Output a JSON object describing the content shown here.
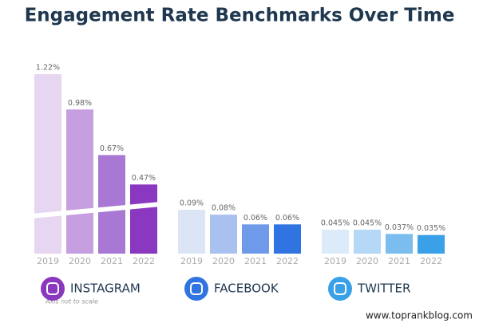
{
  "chart_data": {
    "type": "bar",
    "title": "Engagement Rate Benchmarks Over Time",
    "note": "Axis not to scale",
    "source": "www.toprankblog.com",
    "groups": [
      {
        "name": "INSTAGRAM",
        "categories": [
          "2019",
          "2020",
          "2021",
          "2022"
        ],
        "values": [
          1.22,
          0.98,
          0.67,
          0.47
        ],
        "value_labels": [
          "1.22%",
          "0.98%",
          "0.67%",
          "0.47%"
        ],
        "colors": [
          "#e6d6f1",
          "#c59fe0",
          "#a878d4",
          "#8a38bf"
        ],
        "icon_color": "#8a38bf"
      },
      {
        "name": "FACEBOOK",
        "categories": [
          "2019",
          "2020",
          "2021",
          "2022"
        ],
        "values": [
          0.09,
          0.08,
          0.06,
          0.06
        ],
        "value_labels": [
          "0.09%",
          "0.08%",
          "0.06%",
          "0.06%"
        ],
        "colors": [
          "#dbe5f6",
          "#a9c1ef",
          "#6f9ae9",
          "#2f74e0"
        ],
        "icon_color": "#2f74e0"
      },
      {
        "name": "TWITTER",
        "categories": [
          "2019",
          "2020",
          "2021",
          "2022"
        ],
        "values": [
          0.045,
          0.045,
          0.037,
          0.035
        ],
        "value_labels": [
          "0.045%",
          "0.045%",
          "0.037%",
          "0.035%"
        ],
        "colors": [
          "#dcebfa",
          "#b4d8f5",
          "#7bbdef",
          "#3aa0e8"
        ],
        "icon_color": "#3aa0e8"
      }
    ]
  }
}
